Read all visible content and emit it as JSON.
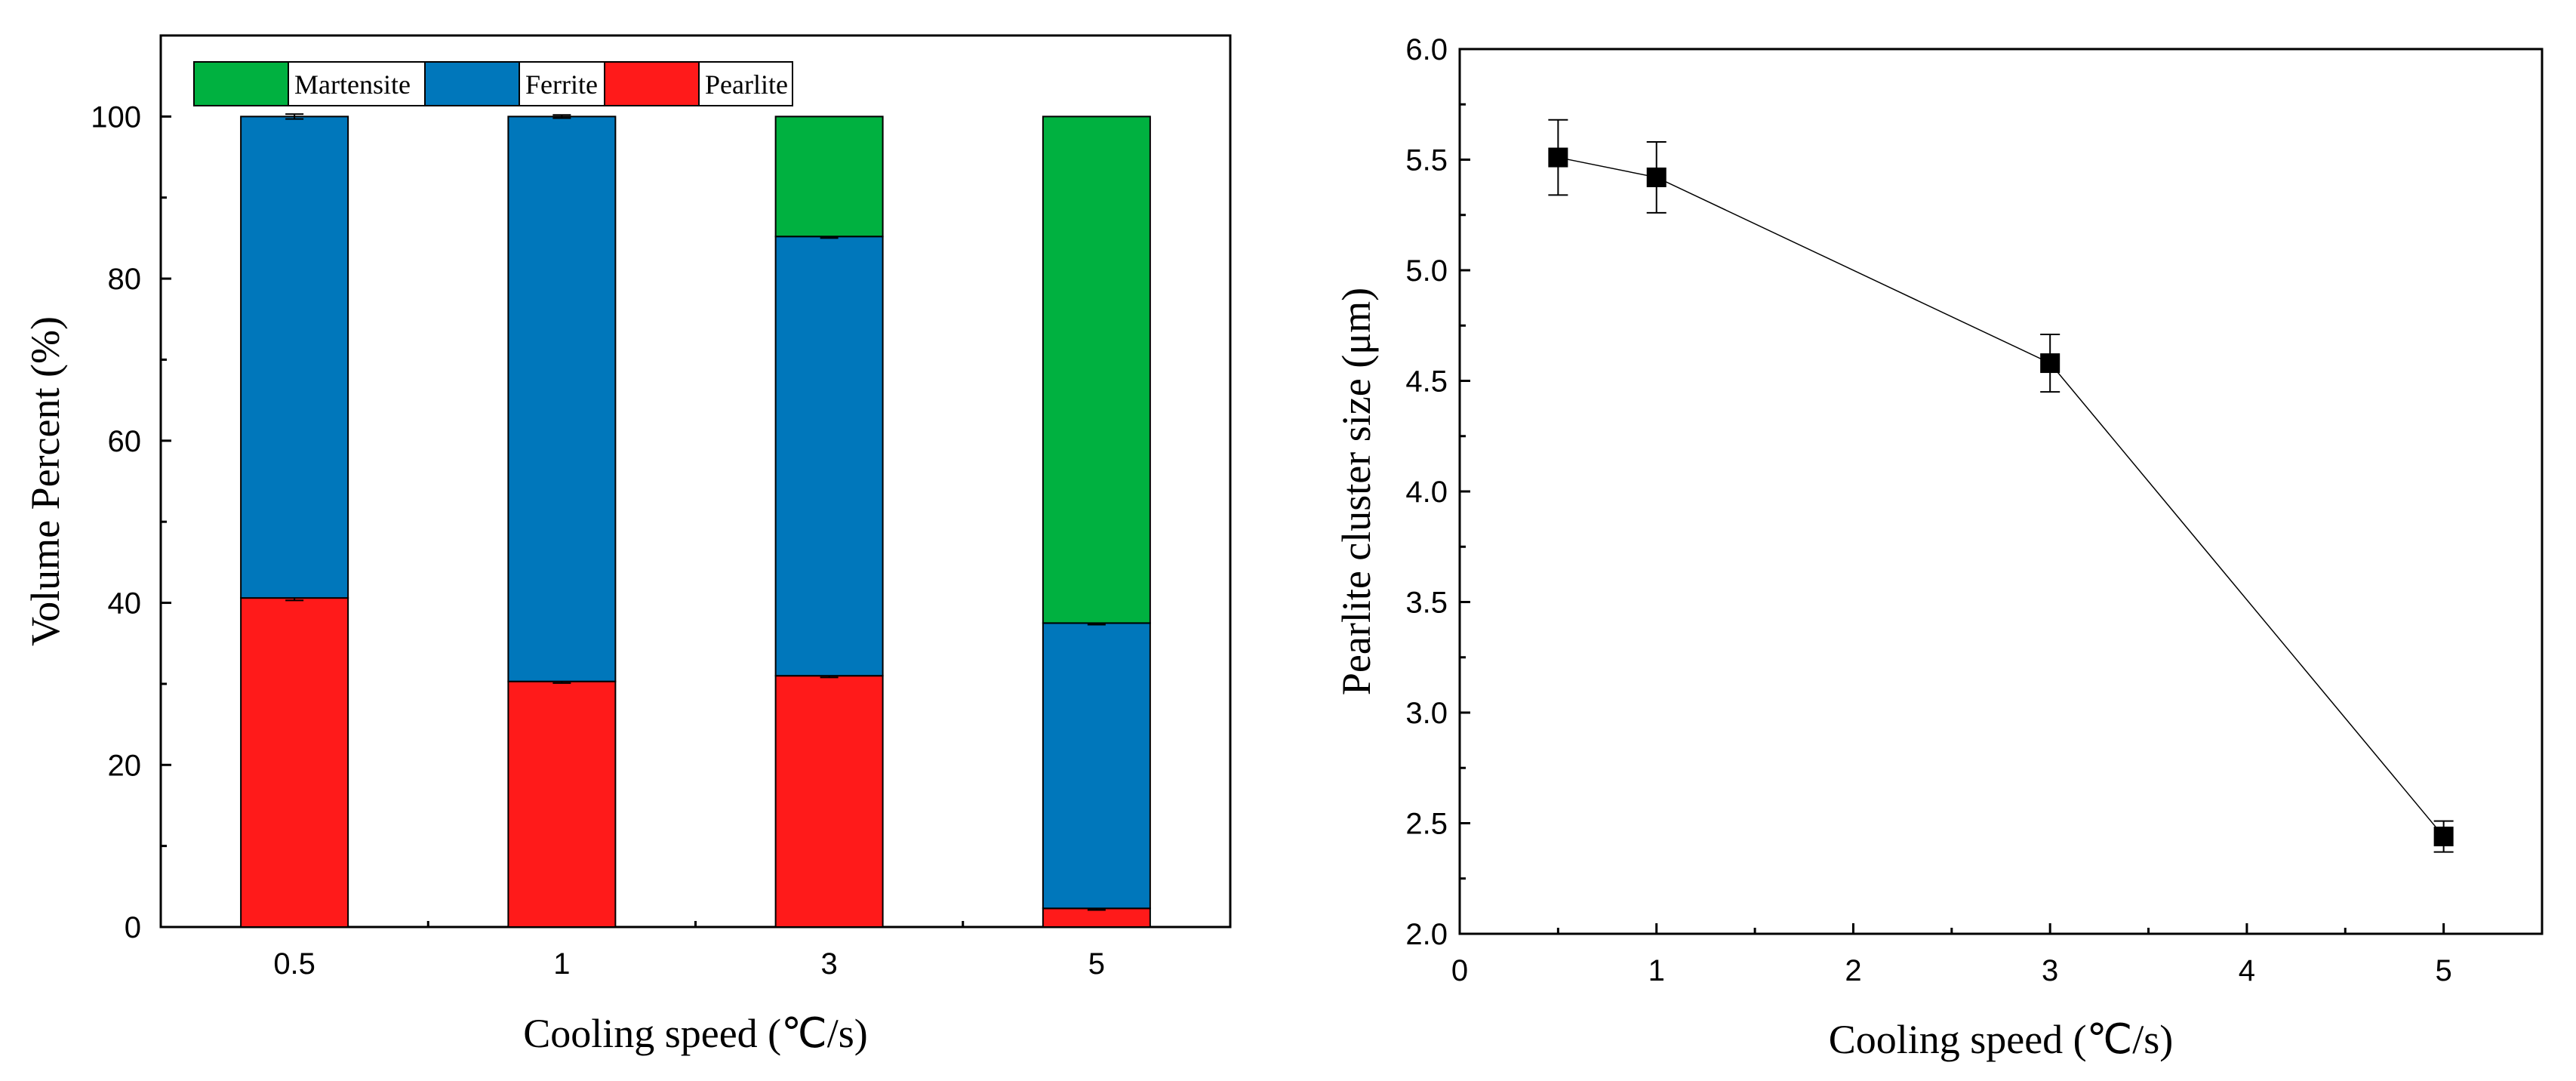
{
  "chart_data": [
    {
      "type": "bar",
      "stacked": true,
      "categories": [
        "0.5",
        "1",
        "3",
        "5"
      ],
      "series": [
        {
          "name": "Pearlite",
          "color": "#ff1a1a",
          "values": [
            40.6,
            30.3,
            31.0,
            2.3
          ],
          "errors": [
            0.3,
            0.2,
            0.2,
            0.2
          ]
        },
        {
          "name": "Ferrite",
          "color": "#0077bb",
          "values": [
            59.4,
            69.7,
            54.2,
            35.2
          ],
          "errors": [
            0.3,
            0.2,
            0.2,
            0.2
          ]
        },
        {
          "name": "Martensite",
          "color": "#00b140",
          "values": [
            0,
            0,
            14.8,
            62.5
          ],
          "errors": [
            0,
            0,
            0,
            0
          ]
        }
      ],
      "legend_order": [
        "Martensite",
        "Ferrite",
        "Pearlite"
      ],
      "legend_position": "top-left",
      "xlabel": "Cooling speed (℃/s)",
      "ylabel": "Volume Percent (%)",
      "ylim": [
        0,
        110
      ],
      "yticks": [
        "0",
        "20",
        "40",
        "60",
        "80",
        "100"
      ]
    },
    {
      "type": "line",
      "marker": "square",
      "x": [
        0.5,
        1,
        3,
        5
      ],
      "y": [
        5.51,
        5.42,
        4.58,
        2.44
      ],
      "errors": [
        0.17,
        0.16,
        0.13,
        0.07
      ],
      "xlabel": "Cooling speed (℃/s)",
      "ylabel": "Pearlite cluster size (μm)",
      "xlim": [
        0,
        5.5
      ],
      "ylim": [
        2.0,
        6.0
      ],
      "xticks": [
        "0",
        "1",
        "2",
        "3",
        "4",
        "5"
      ],
      "yticks": [
        "2.0",
        "2.5",
        "3.0",
        "3.5",
        "4.0",
        "4.5",
        "5.0",
        "5.5",
        "6.0"
      ]
    }
  ]
}
